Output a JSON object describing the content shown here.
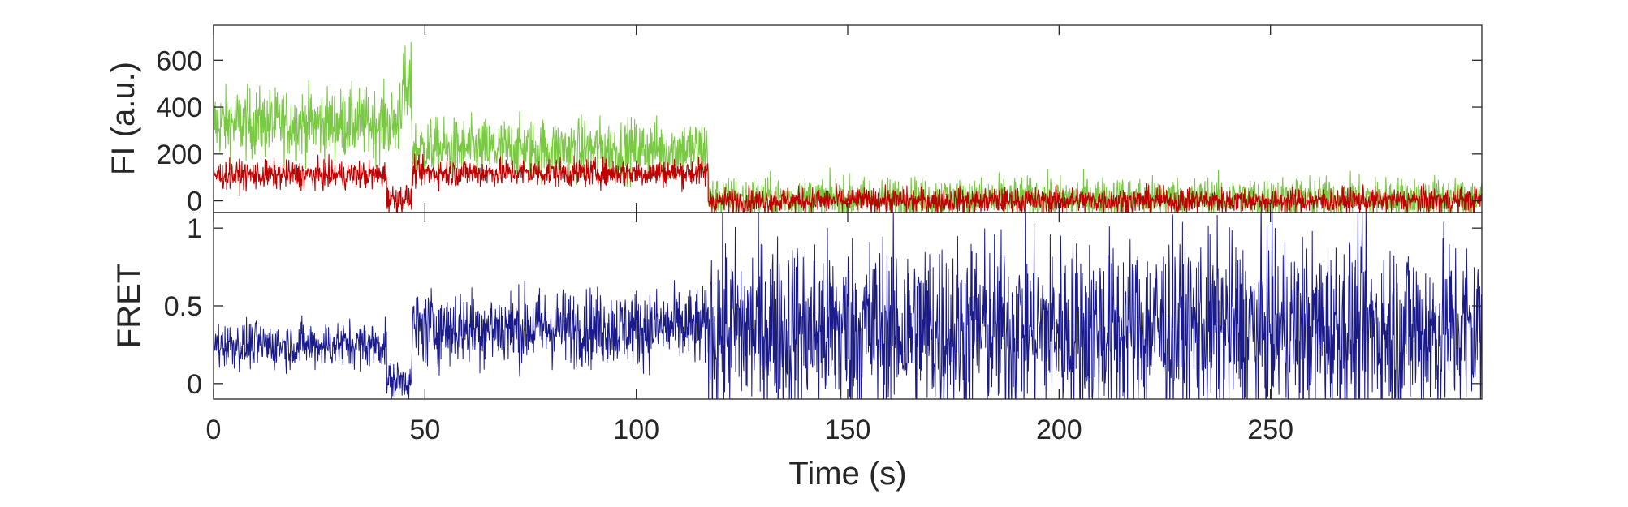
{
  "chart_data": [
    {
      "type": "line",
      "panel": "top",
      "ylabel": "FI (a.u.)",
      "xlabel": "",
      "xlim": [
        0,
        300
      ],
      "ylim": [
        -50,
        750
      ],
      "yticks": [
        0,
        200,
        400,
        600
      ],
      "grid": false,
      "series": [
        {
          "color": "#7ac943",
          "segments": [
            {
              "t": [
                0,
                44
              ],
              "mean": 330,
              "noise": 150
            },
            {
              "t": [
                44,
                47
              ],
              "mean": 450,
              "noise": 200
            },
            {
              "t": [
                47,
                117
              ],
              "mean": 220,
              "noise": 130
            },
            {
              "t": [
                117,
                300
              ],
              "mean": 10,
              "noise": 90
            }
          ]
        },
        {
          "color": "#c00000",
          "segments": [
            {
              "t": [
                0,
                41
              ],
              "mean": 110,
              "noise": 60
            },
            {
              "t": [
                41,
                47
              ],
              "mean": 10,
              "noise": 60
            },
            {
              "t": [
                47,
                117
              ],
              "mean": 120,
              "noise": 60
            },
            {
              "t": [
                117,
                300
              ],
              "mean": 0,
              "noise": 55
            }
          ]
        }
      ]
    },
    {
      "type": "line",
      "panel": "bottom",
      "ylabel": "FRET",
      "xlabel": "Time (s)",
      "xlim": [
        0,
        300
      ],
      "ylim": [
        -0.1,
        1.1
      ],
      "yticks": [
        0,
        0.5,
        1
      ],
      "ytick_labels": [
        "0",
        "0.5",
        "1"
      ],
      "xticks": [
        0,
        50,
        100,
        150,
        200,
        250
      ],
      "grid": false,
      "series": [
        {
          "color": "#1a1a8c",
          "segments": [
            {
              "t": [
                0,
                41
              ],
              "mean": 0.25,
              "noise": 0.15
            },
            {
              "t": [
                41,
                47
              ],
              "mean": 0.02,
              "noise": 0.12
            },
            {
              "t": [
                47,
                117
              ],
              "mean": 0.36,
              "noise": 0.25
            },
            {
              "t": [
                117,
                300
              ],
              "mean": 0.35,
              "noise": 0.6
            }
          ]
        }
      ]
    }
  ]
}
